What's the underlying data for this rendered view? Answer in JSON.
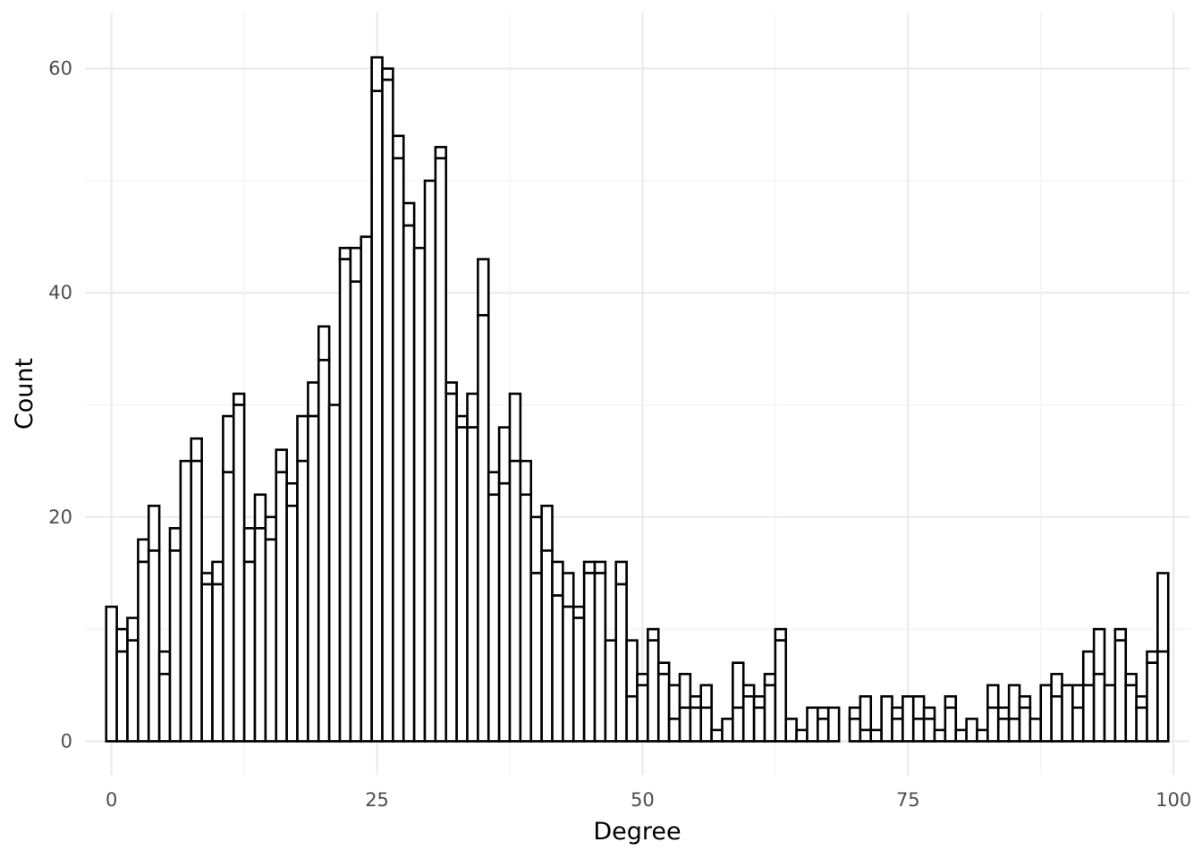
{
  "chart_data": {
    "type": "bar",
    "xlabel": "Degree",
    "ylabel": "Count",
    "xlim": [
      -2.5,
      101.5
    ],
    "ylim": [
      -3,
      65
    ],
    "x_ticks": [
      0,
      25,
      50,
      75,
      100
    ],
    "y_ticks": [
      0,
      20,
      40,
      60
    ],
    "grid": true,
    "bar_fill": "#ffffff",
    "bar_outline": "#000000",
    "series": [
      {
        "stack": "lower",
        "x": [
          0,
          1,
          2,
          3,
          4,
          5,
          6,
          7,
          8,
          9,
          10,
          11,
          12,
          13,
          14,
          15,
          16,
          17,
          18,
          19,
          20,
          21,
          22,
          23,
          24,
          25,
          26,
          27,
          28,
          29,
          30,
          31,
          32,
          33,
          34,
          35,
          36,
          37,
          38,
          39,
          40,
          41,
          42,
          43,
          44,
          45,
          46,
          47,
          48,
          49,
          50,
          51,
          52,
          53,
          54,
          55,
          56,
          57,
          58,
          59,
          60,
          61,
          62,
          63,
          64,
          65,
          66,
          67,
          68,
          70,
          71,
          72,
          73,
          74,
          75,
          76,
          77,
          78,
          79,
          80,
          81,
          82,
          83,
          84,
          85,
          86,
          87,
          88,
          89,
          90,
          91,
          92,
          93,
          94,
          95,
          96,
          97,
          98,
          99
        ],
        "values": [
          12,
          8,
          9,
          16,
          17,
          6,
          17,
          25,
          25,
          14,
          14,
          24,
          30,
          16,
          19,
          18,
          24,
          21,
          25,
          29,
          34,
          30,
          43,
          41,
          45,
          58,
          59,
          52,
          46,
          44,
          50,
          52,
          31,
          28,
          28,
          38,
          22,
          23,
          25,
          22,
          15,
          17,
          13,
          12,
          11,
          15,
          15,
          9,
          14,
          4,
          5,
          9,
          6,
          2,
          3,
          3,
          3,
          1,
          2,
          3,
          4,
          3,
          5,
          9,
          2,
          1,
          3,
          2,
          3,
          2,
          1,
          1,
          4,
          2,
          4,
          2,
          2,
          1,
          3,
          1,
          2,
          1,
          3,
          2,
          2,
          3,
          2,
          5,
          4,
          5,
          3,
          5,
          6,
          5,
          9,
          5,
          3,
          7,
          8
        ]
      },
      {
        "stack": "upper",
        "x": [
          0,
          1,
          2,
          3,
          4,
          5,
          6,
          7,
          8,
          9,
          10,
          11,
          12,
          13,
          14,
          15,
          16,
          17,
          18,
          19,
          20,
          21,
          22,
          23,
          24,
          25,
          26,
          27,
          28,
          29,
          30,
          31,
          32,
          33,
          34,
          35,
          36,
          37,
          38,
          39,
          40,
          41,
          42,
          43,
          44,
          45,
          46,
          47,
          48,
          49,
          50,
          51,
          52,
          53,
          54,
          55,
          56,
          57,
          58,
          59,
          60,
          61,
          62,
          63,
          64,
          65,
          66,
          67,
          68,
          70,
          71,
          72,
          73,
          74,
          75,
          76,
          77,
          78,
          79,
          80,
          81,
          82,
          83,
          84,
          85,
          86,
          87,
          88,
          89,
          90,
          91,
          92,
          93,
          94,
          95,
          96,
          97,
          98,
          99
        ],
        "values": [
          0,
          2,
          2,
          2,
          4,
          2,
          2,
          0,
          2,
          1,
          2,
          5,
          1,
          3,
          3,
          2,
          2,
          2,
          4,
          3,
          3,
          0,
          1,
          3,
          0,
          3,
          1,
          2,
          2,
          0,
          0,
          1,
          1,
          1,
          3,
          5,
          2,
          5,
          6,
          3,
          5,
          4,
          3,
          3,
          1,
          1,
          1,
          0,
          2,
          5,
          1,
          1,
          1,
          3,
          3,
          1,
          2,
          0,
          0,
          4,
          1,
          1,
          1,
          1,
          0,
          0,
          0,
          1,
          0,
          1,
          3,
          0,
          0,
          1,
          0,
          2,
          1,
          0,
          1,
          0,
          0,
          0,
          2,
          1,
          3,
          1,
          0,
          0,
          2,
          0,
          2,
          3,
          4,
          0,
          1,
          1,
          1,
          1,
          7
        ]
      }
    ]
  }
}
